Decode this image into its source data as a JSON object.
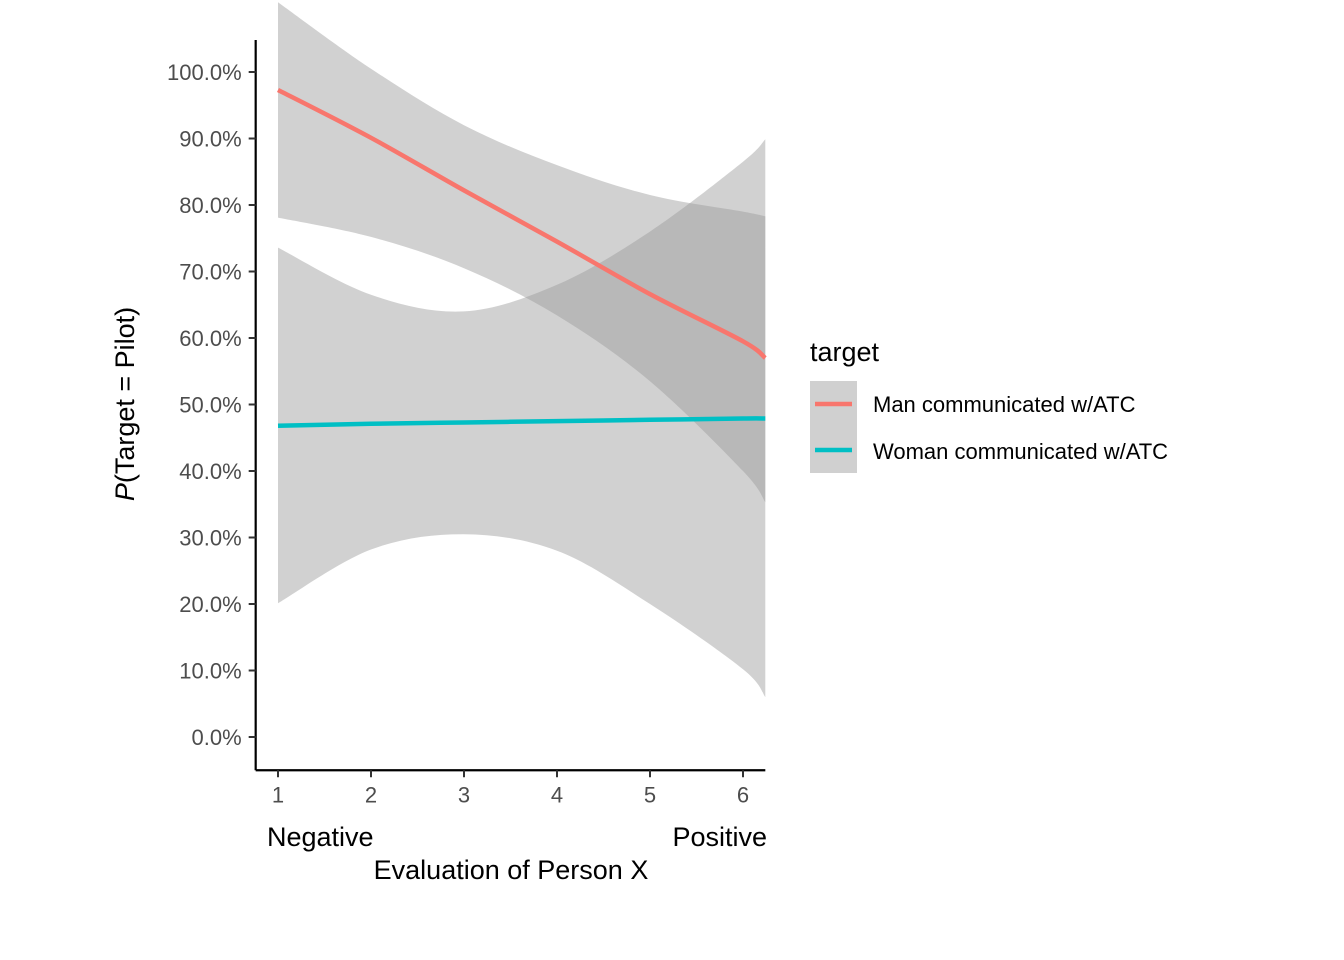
{
  "chart_data": {
    "type": "line",
    "xlabel": "Evaluation of Person X",
    "ylabel_italic": "P",
    "ylabel_rest": "(Target = Pilot)",
    "xlim": [
      0.76,
      6.24
    ],
    "ylim": [
      -0.05,
      1.05
    ],
    "x_ticks": [
      1,
      2,
      3,
      4,
      5,
      6
    ],
    "y_ticks": [
      0,
      0.1,
      0.2,
      0.3,
      0.4,
      0.5,
      0.6,
      0.7,
      0.8,
      0.9,
      1.0
    ],
    "y_tick_labels": [
      "0.0%",
      "10.0%",
      "20.0%",
      "30.0%",
      "40.0%",
      "50.0%",
      "60.0%",
      "70.0%",
      "80.0%",
      "90.0%",
      "100.0%"
    ],
    "x_endpoint_labels": {
      "left": "Negative",
      "right": "Positive"
    },
    "legend": {
      "title": "target",
      "position": "right"
    },
    "grid": false,
    "series": [
      {
        "name": "Man communicated w/ATC",
        "color": "#F8766D",
        "x": [
          1,
          2,
          3,
          4,
          5,
          6,
          6.24
        ],
        "y": [
          0.973,
          0.901,
          0.822,
          0.745,
          0.666,
          0.595,
          0.57
        ],
        "lower": [
          0.781,
          0.752,
          0.705,
          0.634,
          0.535,
          0.4,
          0.353
        ],
        "upper": [
          1.105,
          1.005,
          0.92,
          0.86,
          0.815,
          0.79,
          0.783
        ]
      },
      {
        "name": "Woman communicated w/ATC",
        "color": "#00BFC4",
        "x": [
          1,
          2,
          3,
          4,
          5,
          6,
          6.24
        ],
        "y": [
          0.468,
          0.471,
          0.473,
          0.475,
          0.477,
          0.479,
          0.479
        ],
        "lower": [
          0.201,
          0.282,
          0.305,
          0.28,
          0.2,
          0.102,
          0.06
        ],
        "upper": [
          0.736,
          0.665,
          0.64,
          0.68,
          0.76,
          0.865,
          0.899
        ]
      }
    ]
  }
}
